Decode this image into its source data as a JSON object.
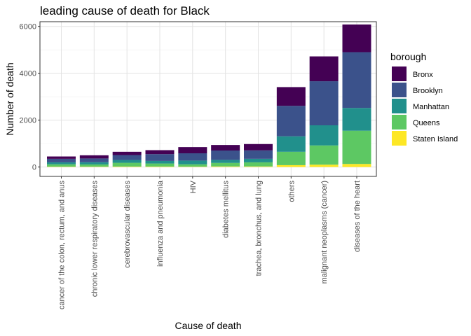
{
  "chart_data": {
    "type": "bar",
    "stacked": true,
    "title": "leading cause of death for Black",
    "xlabel": "Cause of death",
    "ylabel": "Number of death",
    "ylim": [
      -400,
      6200
    ],
    "yticks": [
      0,
      2000,
      4000,
      6000
    ],
    "grid": true,
    "legend": {
      "title": "borough",
      "position": "right"
    },
    "categories": [
      "cancer of the colon, rectum, and anus",
      "chronic lower respiratory diseases",
      "cerebrovascular diseases",
      "influenza and pneumonia",
      "HIV",
      "diabetes mellitus",
      "trachea, bronchus, and lung",
      "others",
      "malignant neoplasms (cancer)",
      "diseases of the heart"
    ],
    "series": [
      {
        "name": "Staten Island",
        "color": "#FDE725",
        "values": [
          15,
          15,
          20,
          20,
          15,
          25,
          25,
          80,
          100,
          130
        ]
      },
      {
        "name": "Queens",
        "color": "#5DC863",
        "values": [
          100,
          95,
          160,
          130,
          100,
          150,
          175,
          570,
          820,
          1420
        ]
      },
      {
        "name": "Manhattan",
        "color": "#21908C",
        "values": [
          85,
          95,
          120,
          110,
          160,
          130,
          150,
          660,
          860,
          970
        ]
      },
      {
        "name": "Brooklyn",
        "color": "#3B528B",
        "values": [
          150,
          160,
          210,
          290,
          310,
          400,
          360,
          1300,
          1880,
          2380
        ]
      },
      {
        "name": "Bronx",
        "color": "#440154",
        "values": [
          100,
          135,
          140,
          170,
          265,
          235,
          270,
          800,
          1060,
          1180
        ]
      }
    ],
    "legend_order": [
      "Bronx",
      "Brooklyn",
      "Manhattan",
      "Queens",
      "Staten Island"
    ]
  }
}
